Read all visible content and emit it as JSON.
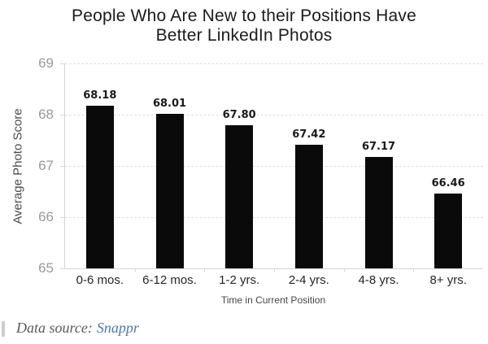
{
  "page": {
    "title_line1": "People Who Are New to their Positions Have",
    "title_line2": "Better LinkedIn Photos"
  },
  "caption": {
    "prefix": "Data source:",
    "link_label": "Snappr"
  },
  "chart_data": {
    "type": "bar",
    "title": "People Who Are New to their Positions Have Better LinkedIn Photos",
    "categories": [
      "0-6 mos.",
      "6-12 mos.",
      "1-2 yrs.",
      "2-4 yrs.",
      "4-8 yrs.",
      "8+ yrs."
    ],
    "values": [
      68.18,
      68.01,
      67.8,
      67.42,
      67.17,
      66.46
    ],
    "value_labels": [
      "68.18",
      "68.01",
      "67.80",
      "67.42",
      "67.17",
      "66.46"
    ],
    "xlabel": "Time in Current Position",
    "ylabel": "Average Photo Score",
    "ylim": [
      65,
      69
    ],
    "yticks": [
      69,
      68,
      67,
      66,
      65
    ],
    "grid": "horizontal-dashed",
    "legend": "none",
    "colors": {
      "bar": "#0a0a0a",
      "grid": "#dedede",
      "axis": "#d6d6d6",
      "ytick_label": "#9a9a9a",
      "xtick_label": "#262626",
      "value_label": "#1a1a1a",
      "axis_title": "#4a4a4a",
      "title": "#1b1b1b",
      "caption_text": "#5a5a5a",
      "caption_link": "#4a7aa8",
      "caption_bar": "#cccccc"
    }
  }
}
